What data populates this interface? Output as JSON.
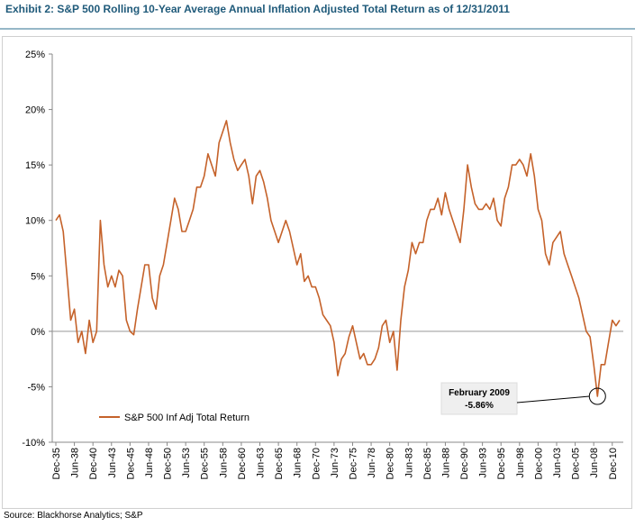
{
  "chart_data": {
    "type": "line",
    "title": "Exhibit 2: S&P 500 Rolling 10-Year Average Annual Inflation Adjusted Total Return as of 12/31/2011",
    "source": "Source: Blackhorse Analytics; S&P",
    "categories": [
      "Dec-35",
      null,
      null,
      null,
      null,
      "Jun-38",
      null,
      null,
      null,
      null,
      "Dec-40",
      null,
      null,
      null,
      null,
      "Jun-43",
      null,
      null,
      null,
      null,
      "Dec-45",
      null,
      null,
      null,
      null,
      "Jun-48",
      null,
      null,
      null,
      null,
      "Dec-50",
      null,
      null,
      null,
      null,
      "Jun-53",
      null,
      null,
      null,
      null,
      "Dec-55",
      null,
      null,
      null,
      null,
      "Jun-58",
      null,
      null,
      null,
      null,
      "Dec-60",
      null,
      null,
      null,
      null,
      "Jun-63",
      null,
      null,
      null,
      null,
      "Dec-65",
      null,
      null,
      null,
      null,
      "Jun-68",
      null,
      null,
      null,
      null,
      "Dec-70",
      null,
      null,
      null,
      null,
      "Jun-73",
      null,
      null,
      null,
      null,
      "Dec-75",
      null,
      null,
      null,
      null,
      "Jun-78",
      null,
      null,
      null,
      null,
      "Dec-80",
      null,
      null,
      null,
      null,
      "Jun-83",
      null,
      null,
      null,
      null,
      "Dec-85",
      null,
      null,
      null,
      null,
      "Jun-88",
      null,
      null,
      null,
      null,
      "Dec-90",
      null,
      null,
      null,
      null,
      "Jun-93",
      null,
      null,
      null,
      null,
      "Dec-95",
      null,
      null,
      null,
      null,
      "Jun-98",
      null,
      null,
      null,
      null,
      "Dec-00",
      null,
      null,
      null,
      null,
      "Jun-03",
      null,
      null,
      null,
      null,
      "Dec-05",
      null,
      null,
      null,
      null,
      "Jun-08",
      null,
      null,
      null,
      null,
      "Dec-10",
      null,
      null
    ],
    "series": [
      {
        "name": "S&P 500 Inf Adj Total Return",
        "color": "#c5622a",
        "values": [
          10,
          10.5,
          9,
          5,
          1,
          2,
          -1,
          0,
          -2,
          1,
          -1,
          0,
          10,
          6,
          4,
          5,
          4,
          5.5,
          5,
          1,
          0,
          -0.3,
          2,
          4,
          6,
          6,
          3,
          2,
          5,
          6,
          8,
          10,
          12,
          11,
          9,
          9,
          10,
          11,
          13,
          13,
          14,
          16,
          15,
          14,
          17,
          18,
          19,
          17,
          15.5,
          14.5,
          15,
          15.5,
          14,
          11.5,
          14,
          14.5,
          13.5,
          12,
          10,
          9,
          8,
          9,
          10,
          9,
          7.5,
          6,
          7,
          4.5,
          5,
          4,
          4,
          3,
          1.5,
          1,
          0.5,
          -1,
          -4,
          -2.5,
          -2,
          -0.5,
          0.5,
          -1,
          -2.5,
          -2,
          -3,
          -3,
          -2.5,
          -1.5,
          0.5,
          1,
          -1,
          0,
          -3.5,
          1,
          4,
          5.5,
          8,
          7,
          8,
          8,
          10,
          11,
          11,
          12,
          10.5,
          12.5,
          11,
          10,
          9,
          8,
          11,
          15,
          13,
          11.5,
          11,
          11,
          11.5,
          11,
          12,
          10,
          9.5,
          12,
          13,
          15,
          15,
          15.5,
          15,
          14,
          16,
          14,
          11,
          10,
          7,
          6,
          8,
          8.5,
          9,
          7,
          6,
          5,
          4,
          3,
          1.5,
          0,
          -0.5,
          -3,
          -5.86,
          -3,
          -3,
          -1,
          1,
          0.5,
          1
        ]
      }
    ],
    "ylim": [
      -10,
      25
    ],
    "yticks": [
      {
        "value": -10,
        "label": "-10%"
      },
      {
        "value": -5,
        "label": "-5%"
      },
      {
        "value": 0,
        "label": "0%"
      },
      {
        "value": 5,
        "label": "5%"
      },
      {
        "value": 10,
        "label": "10%"
      },
      {
        "value": 15,
        "label": "15%"
      },
      {
        "value": 20,
        "label": "20%"
      },
      {
        "value": 25,
        "label": "25%"
      }
    ],
    "annotation": {
      "title": "February 2009",
      "label": "-5.86%"
    },
    "legend": "lower-left"
  }
}
